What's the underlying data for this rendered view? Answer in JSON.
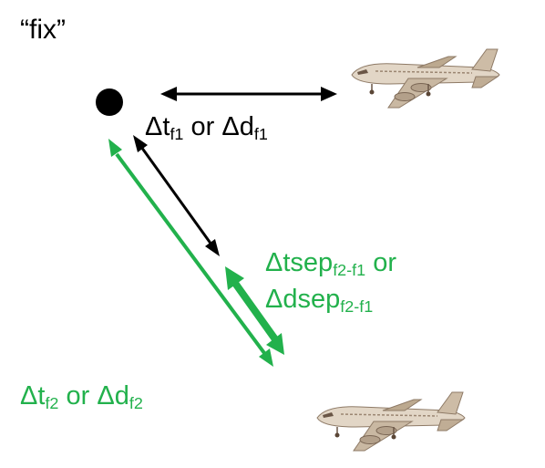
{
  "title": "“fix”",
  "labels": {
    "f1": {
      "delta": "Δt",
      "sub_a": "f1",
      "or": " or ",
      "delta_d": "Δd",
      "sub_b": "f1"
    },
    "f2": {
      "delta": "Δt",
      "sub_a": "f2",
      "or": " or ",
      "delta_d": "Δd",
      "sub_b": "f2"
    },
    "sep": {
      "line1_main": "Δtsep",
      "line1_sub": "f2-f1",
      "line1_or": " or",
      "line2_main": "Δdsep",
      "line2_sub": "f2-f1"
    }
  },
  "icons": {
    "fix_point": "fix-point-dot",
    "aircraft_1": "airplane-icon",
    "aircraft_2": "airplane-icon"
  },
  "colors": {
    "black": "#000000",
    "green": "#22b14c",
    "aircraft_body": "#d9cbb8",
    "aircraft_shade": "#a08670"
  }
}
